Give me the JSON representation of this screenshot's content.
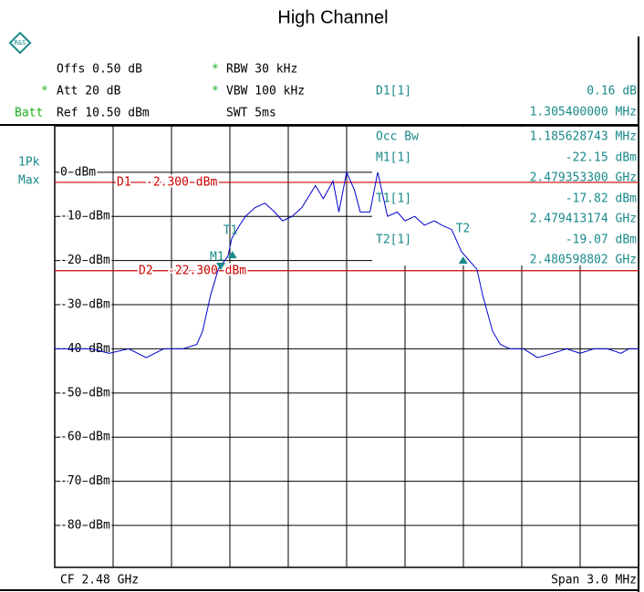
{
  "chart_data": {
    "type": "line",
    "title": "High Channel",
    "info": {
      "offs": "Offs 0.50 dB",
      "rbw": "RBW 30 kHz",
      "att": "Att 20 dB",
      "vbw": "VBW 100 kHz",
      "batt": "Batt",
      "ref": "Ref 10.50 dBm",
      "swt": "SWT 5ms",
      "star": "*",
      "detector": "1Pk",
      "trace_mode": "Max",
      "cf": "CF 2.48 GHz",
      "span": "Span 3.0 MHz"
    },
    "xlim": [
      2.4785,
      2.4815
    ],
    "ylim": [
      -89.5,
      10.5
    ],
    "yticks": [
      {
        "value": 0,
        "label": "0 dBm"
      },
      {
        "value": -10,
        "label": "-10 dBm"
      },
      {
        "value": -20,
        "label": "-20 dBm"
      },
      {
        "value": -30,
        "label": "-30 dBm"
      },
      {
        "value": -40,
        "label": "-40 dBm"
      },
      {
        "value": -50,
        "label": "-50 dBm"
      },
      {
        "value": -60,
        "label": "-60 dBm"
      },
      {
        "value": -70,
        "label": "-70 dBm"
      },
      {
        "value": -80,
        "label": "-80 dBm"
      }
    ],
    "grid": true,
    "series": [
      {
        "name": "1Pk Max",
        "color": "#0000cc",
        "x": [
          2.4785,
          2.47859,
          2.47869,
          2.47878,
          2.47888,
          2.47897,
          2.47906,
          2.47916,
          2.47923,
          2.47926,
          2.4793,
          2.47934,
          2.47939,
          2.47941,
          2.47945,
          2.47948,
          2.47953,
          2.47958,
          2.47963,
          2.47967,
          2.47972,
          2.47977,
          2.47984,
          2.47988,
          2.47993,
          2.47996,
          2.48,
          2.48004,
          2.48007,
          2.48012,
          2.48016,
          2.48021,
          2.48026,
          2.4803,
          2.48035,
          2.4804,
          2.48045,
          2.48049,
          2.48054,
          2.48059,
          2.48063,
          2.48067,
          2.4807,
          2.48075,
          2.48079,
          2.48084,
          2.48091,
          2.48098,
          2.48106,
          2.48113,
          2.4812,
          2.48127,
          2.48134,
          2.48141,
          2.48145,
          2.4815
        ],
        "values": [
          -40,
          -40,
          -40,
          -41,
          -40,
          -42,
          -40,
          -40,
          -39,
          -36,
          -28,
          -22,
          -19,
          -15,
          -12,
          -10,
          -8,
          -7,
          -9,
          -11,
          -10,
          -8,
          -3,
          -6,
          -2,
          -9,
          0,
          -4,
          -9,
          -9,
          0,
          -10,
          -9,
          -11,
          -10,
          -12,
          -11,
          -12,
          -13,
          -18,
          -20,
          -22,
          -28,
          -36,
          -39,
          -40,
          -40,
          -42,
          -41,
          -40,
          -41,
          -40,
          -40,
          -41,
          -40,
          -40
        ]
      }
    ],
    "display_lines": [
      {
        "name": "D1",
        "value": -2.3,
        "label": "-2.300 dBm",
        "color": "#cc0000"
      },
      {
        "name": "D2",
        "value": -22.3,
        "label": "-22.300 dBm",
        "color": "#cc0000"
      }
    ],
    "delta": {
      "name": "D1[1]",
      "value_label": "0.16 dB",
      "freq_label": "1.305400000 MHz"
    },
    "occ_bw": {
      "name": "Occ Bw",
      "value_label": "1.185628743 MHz"
    },
    "markers": [
      {
        "name": "M1",
        "table_name": "M1[1]",
        "x": 2.4793533,
        "y": -22.15,
        "x_label": "2.479353300 GHz",
        "y_label": "-22.15 dBm"
      },
      {
        "name": "T1",
        "table_name": "T1[1]",
        "x": 2.479413174,
        "y": -17.82,
        "x_label": "2.479413174 GHz",
        "y_label": "-17.82 dBm"
      },
      {
        "name": "T2",
        "table_name": "T2[1]",
        "x": 2.480598802,
        "y": -19.07,
        "x_label": "2.480598802 GHz",
        "y_label": "-19.07 dBm"
      }
    ],
    "marker_color": "#1a8a8a"
  }
}
